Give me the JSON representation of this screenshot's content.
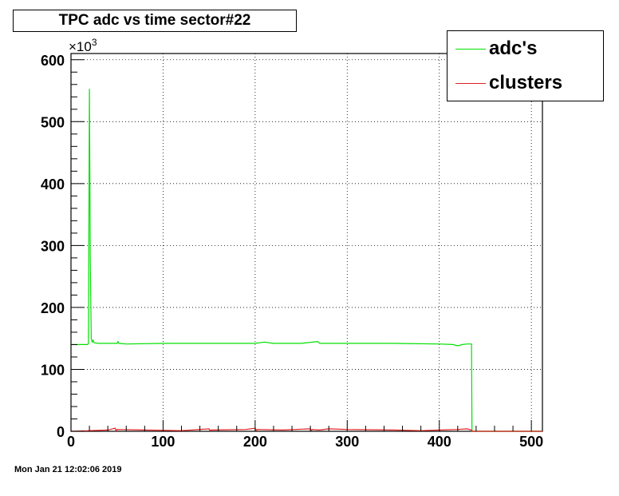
{
  "chart_data": {
    "type": "line",
    "title": "TPC adc vs time sector#22",
    "xlim": [
      0,
      512
    ],
    "ylim": [
      0,
      610
    ],
    "y_exponent_label": "×10",
    "y_exponent_power": "3",
    "x_ticks": [
      0,
      100,
      200,
      300,
      400,
      500
    ],
    "x_tick_labels": [
      "0",
      "100",
      "200",
      "300",
      "400",
      "500"
    ],
    "y_ticks": [
      0,
      100,
      200,
      300,
      400,
      500,
      600
    ],
    "y_tick_labels": [
      "0",
      "100",
      "200",
      "300",
      "400",
      "500",
      "600"
    ],
    "grid": true,
    "legend_position": "top-right",
    "series": [
      {
        "name": "adc's",
        "color": "#00e000",
        "x": [
          0,
          18,
          19,
          20,
          21,
          22,
          23,
          24,
          25,
          30,
          50,
          51,
          52,
          60,
          100,
          150,
          200,
          210,
          220,
          250,
          268,
          270,
          300,
          350,
          400,
          415,
          420,
          425,
          430,
          434,
          435,
          435.5,
          512
        ],
        "y": [
          140,
          140,
          142,
          553,
          275,
          150,
          144,
          147,
          143,
          142,
          142,
          145,
          142,
          141,
          142,
          142,
          142,
          144,
          142,
          142,
          145,
          142,
          142,
          142,
          141,
          140,
          138,
          140,
          141,
          141,
          141,
          0,
          0
        ]
      },
      {
        "name": "clusters",
        "color": "#e02020",
        "x": [
          0,
          20,
          40,
          48,
          49,
          50,
          80,
          120,
          150,
          151,
          152,
          190,
          200,
          201,
          202,
          230,
          260,
          261,
          262,
          270,
          280,
          300,
          350,
          380,
          400,
          420,
          430,
          435,
          436,
          512
        ],
        "y": [
          0,
          1,
          2,
          5,
          1,
          3,
          2,
          1,
          4,
          1,
          2,
          3,
          5,
          1,
          3,
          2,
          4,
          1,
          3,
          2,
          4,
          3,
          2,
          1,
          2,
          3,
          4,
          2,
          0,
          0
        ]
      }
    ]
  },
  "legend": {
    "adc_label": "adc's",
    "clusters_label": "clusters"
  },
  "footer": {
    "timestamp": "Mon Jan 21 12:02:06 2019"
  }
}
